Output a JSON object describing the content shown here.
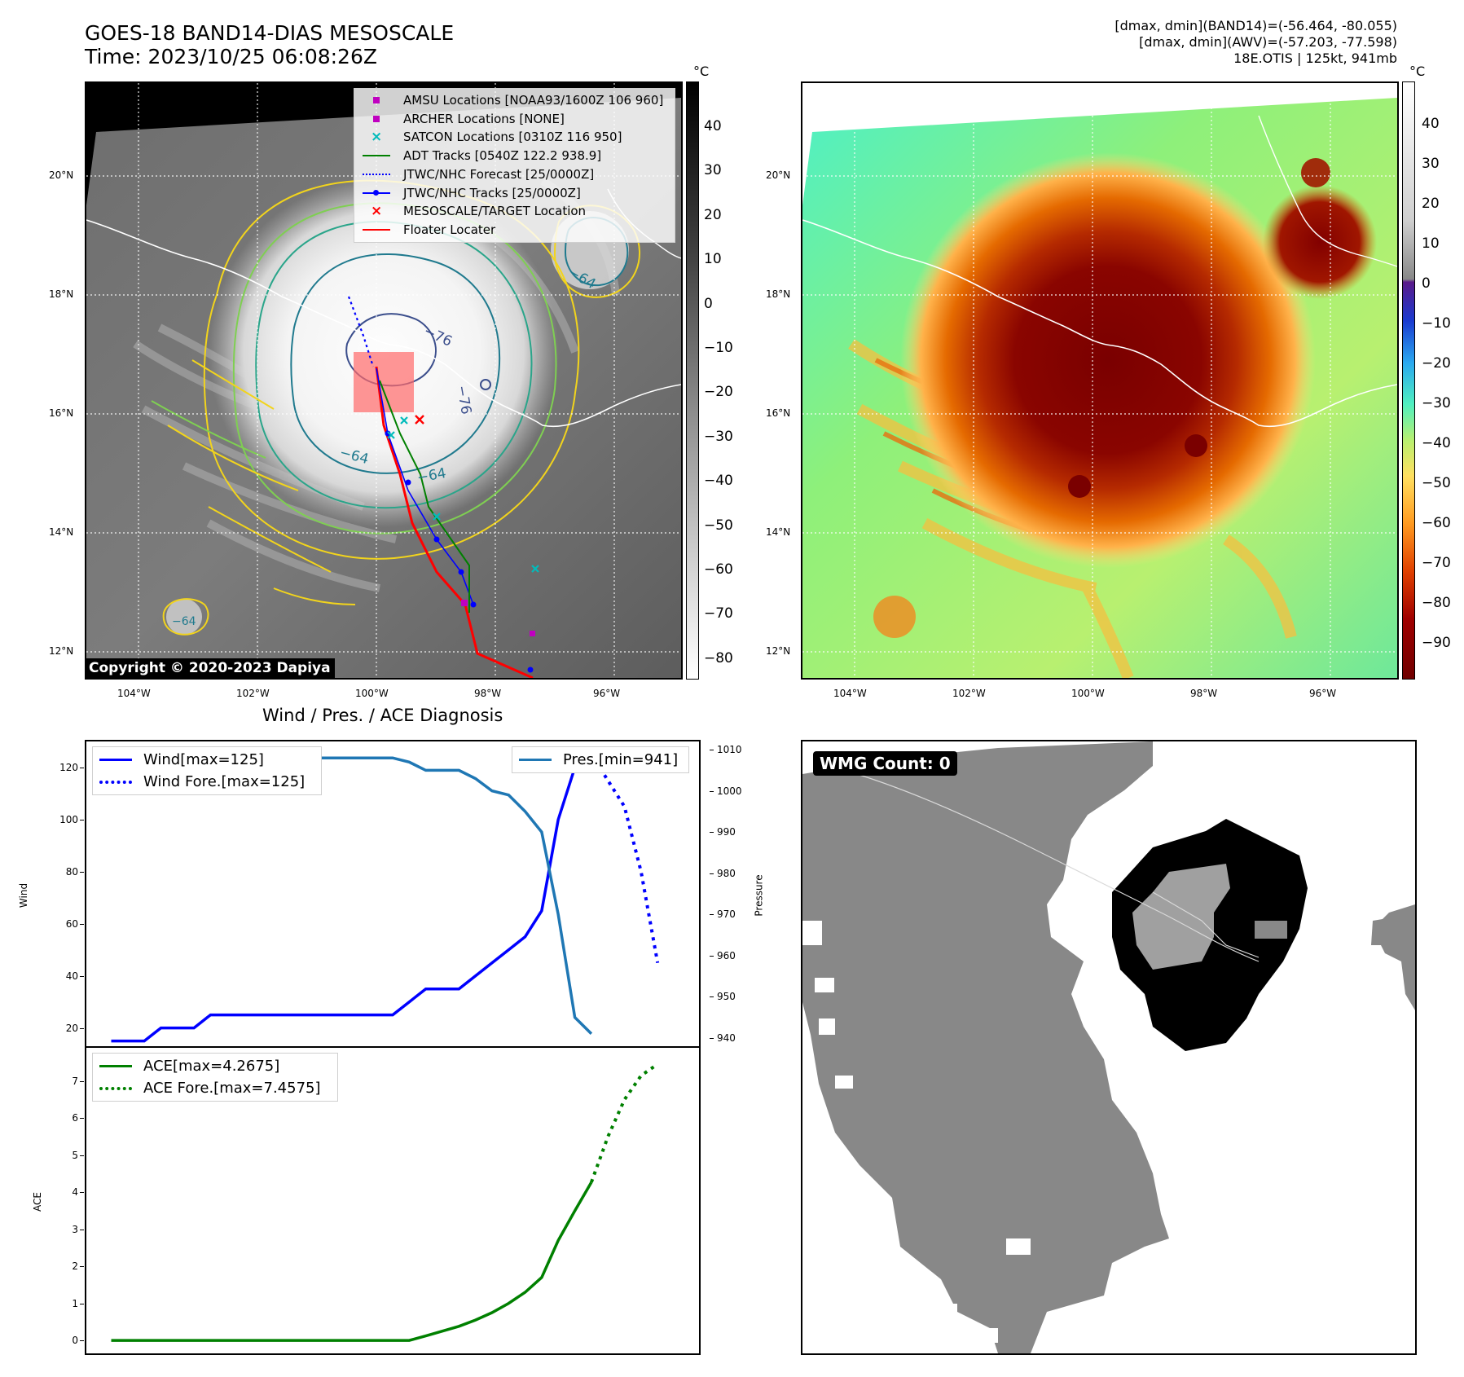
{
  "header": {
    "title_line1": "GOES-18 BAND14-DIAS MESOSCALE",
    "title_line2": "Time: 2023/10/25 06:08:26Z",
    "stats_line1": "[dmax, dmin](BAND14)=(-56.464, -80.055)",
    "stats_line2": "[dmax, dmin](AWV)=(-57.203, -77.598)",
    "stats_line3": "18E.OTIS | 125kt, 941mb"
  },
  "colorbar_unit": "°C",
  "gray_colorbar_ticks": [
    "40",
    "30",
    "20",
    "10",
    "0",
    "−10",
    "−20",
    "−30",
    "−40",
    "−50",
    "−60",
    "−70",
    "−80"
  ],
  "color_colorbar_ticks": [
    "40",
    "30",
    "20",
    "10",
    "0",
    "−10",
    "−20",
    "−30",
    "−40",
    "−50",
    "−60",
    "−70",
    "−80",
    "−90"
  ],
  "lon_ticks": [
    "104°W",
    "102°W",
    "100°W",
    "98°W",
    "96°W"
  ],
  "lat_ticks": [
    "20°N",
    "18°N",
    "16°N",
    "14°N",
    "12°N"
  ],
  "contour_labels": [
    "−76",
    "−76",
    "−64",
    "−64",
    "−64",
    "−64"
  ],
  "map_legend": [
    {
      "label": "AMSU Locations [NOAA93/1600Z 106 960]",
      "color": "#c000c0",
      "symbol": "square"
    },
    {
      "label": "ARCHER Locations [NONE]",
      "color": "#c000c0",
      "symbol": "square"
    },
    {
      "label": "SATCON Locations [0310Z 116 950]",
      "color": "#00bbbb",
      "symbol": "x"
    },
    {
      "label": "ADT Tracks [0540Z 122.2 938.9]",
      "color": "#008000",
      "symbol": "line"
    },
    {
      "label": "JTWC/NHC Forecast [25/0000Z]",
      "color": "#0000ff",
      "symbol": "dotted"
    },
    {
      "label": "JTWC/NHC Tracks [25/0000Z]",
      "color": "#0000ff",
      "symbol": "line-dot"
    },
    {
      "label": "MESOSCALE/TARGET Location",
      "color": "#ff0000",
      "symbol": "x"
    },
    {
      "label": "Floater Locater",
      "color": "#ff0000",
      "symbol": "line"
    }
  ],
  "copyright": "Copyright © 2020-2023 Dapiya",
  "diag_title": "Wind / Pres. / ACE Diagnosis",
  "wind_legend": [
    "Wind[max=125]",
    "Wind Fore.[max=125]"
  ],
  "pres_legend": "Pres.[min=941]",
  "ace_legend": [
    "ACE[max=4.2675]",
    "ACE Fore.[max=7.4575]"
  ],
  "wind_ylabel": "Wind",
  "pres_ylabel": "Pressure",
  "ace_ylabel": "ACE",
  "wmg_label": "WMG Count: 0",
  "chart_data": [
    {
      "type": "line",
      "ylabel": "Wind",
      "ylim": [
        13,
        130
      ],
      "yticks": [
        20,
        40,
        60,
        80,
        100,
        120
      ],
      "x": [
        0,
        1,
        2,
        3,
        4,
        5,
        6,
        7,
        8,
        9,
        10,
        11,
        12,
        13,
        14,
        15,
        16,
        17,
        18,
        19,
        20,
        21,
        22,
        23,
        24,
        25,
        26,
        27,
        28,
        29,
        30,
        31,
        32,
        33
      ],
      "series": [
        {
          "name": "Wind[max=125]",
          "color": "#0000ff",
          "style": "solid",
          "x": [
            0,
            1,
            2,
            3,
            4,
            5,
            6,
            7,
            8,
            9,
            10,
            11,
            12,
            13,
            14,
            15,
            16,
            17,
            18,
            19,
            20,
            21,
            22,
            23,
            24,
            25,
            26,
            27,
            28,
            29
          ],
          "values": [
            15,
            15,
            15,
            20,
            20,
            20,
            25,
            25,
            25,
            25,
            25,
            25,
            25,
            25,
            25,
            25,
            25,
            25,
            30,
            35,
            35,
            35,
            40,
            45,
            50,
            55,
            65,
            100,
            120,
            125
          ]
        },
        {
          "name": "Wind Fore.[max=125]",
          "color": "#0000ff",
          "style": "dotted",
          "x": [
            29,
            30,
            31,
            32,
            33
          ],
          "values": [
            125,
            115,
            105,
            80,
            45
          ]
        }
      ]
    },
    {
      "type": "line",
      "ylabel": "Pressure",
      "ylim": [
        938,
        1012
      ],
      "yticks": [
        940,
        950,
        960,
        970,
        980,
        990,
        1000,
        1010
      ],
      "series": [
        {
          "name": "Pres.[min=941]",
          "color": "#1f77b4",
          "style": "solid",
          "x": [
            0,
            1,
            2,
            3,
            4,
            5,
            6,
            7,
            8,
            9,
            10,
            11,
            12,
            13,
            14,
            15,
            16,
            17,
            18,
            19,
            20,
            21,
            22,
            23,
            24,
            25,
            26,
            27,
            28,
            29
          ],
          "values": [
            1010,
            1010,
            1010,
            1009,
            1009,
            1009,
            1008,
            1008,
            1008,
            1008,
            1008,
            1008,
            1008,
            1008,
            1008,
            1008,
            1008,
            1008,
            1007,
            1005,
            1005,
            1005,
            1003,
            1000,
            999,
            995,
            990,
            970,
            945,
            941
          ]
        }
      ]
    },
    {
      "type": "line",
      "ylabel": "ACE",
      "ylim": [
        -0.35,
        7.9
      ],
      "yticks": [
        0,
        1,
        2,
        3,
        4,
        5,
        6,
        7
      ],
      "series": [
        {
          "name": "ACE[max=4.2675]",
          "color": "#008000",
          "style": "solid",
          "x": [
            0,
            1,
            2,
            3,
            4,
            5,
            6,
            7,
            8,
            9,
            10,
            11,
            12,
            13,
            14,
            15,
            16,
            17,
            18,
            19,
            20,
            21,
            22,
            23,
            24,
            25,
            26,
            27,
            28,
            29
          ],
          "values": [
            0,
            0,
            0,
            0,
            0,
            0,
            0,
            0,
            0,
            0,
            0,
            0,
            0,
            0,
            0,
            0,
            0,
            0,
            0,
            0.12,
            0.25,
            0.38,
            0.55,
            0.75,
            1.0,
            1.3,
            1.7,
            2.7,
            3.5,
            4.27
          ]
        },
        {
          "name": "ACE Fore.[max=7.4575]",
          "color": "#008000",
          "style": "dotted",
          "x": [
            29,
            30,
            31,
            32,
            33
          ],
          "values": [
            4.27,
            5.5,
            6.5,
            7.15,
            7.46
          ]
        }
      ]
    }
  ]
}
